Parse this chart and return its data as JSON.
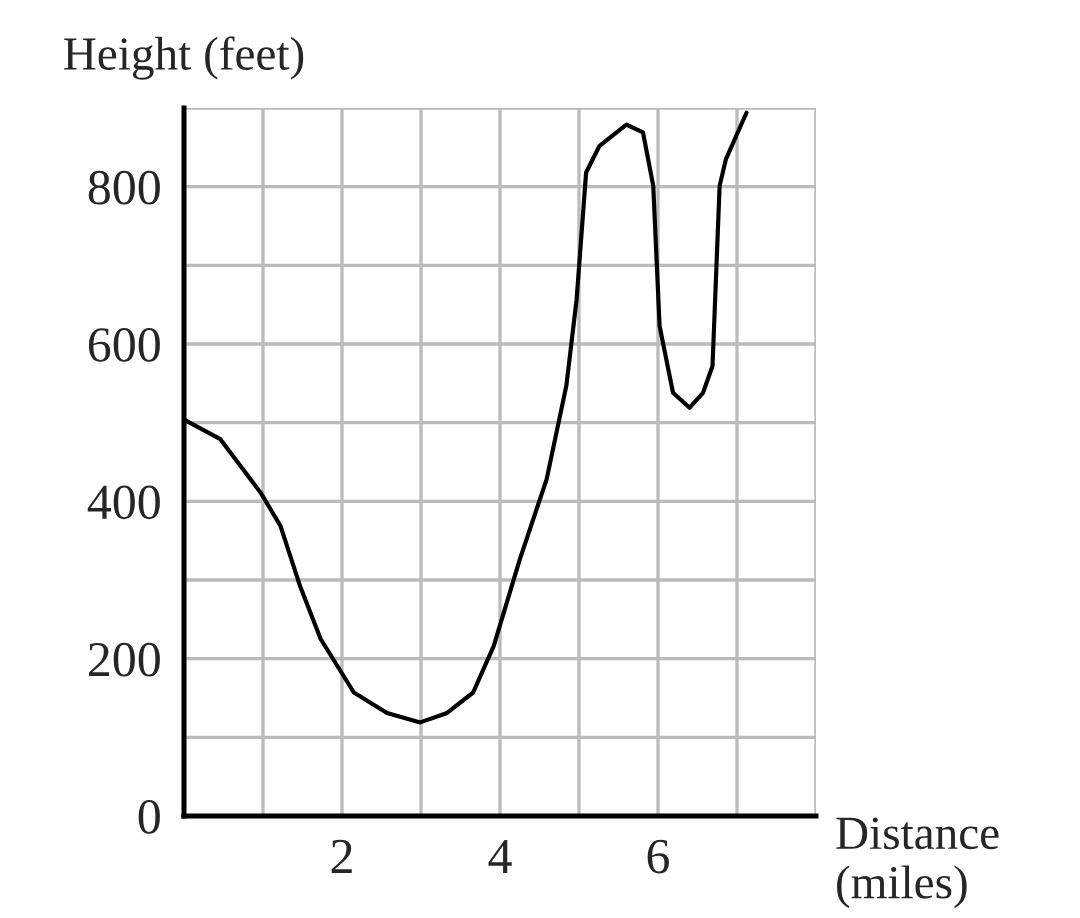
{
  "chart_data": {
    "type": "line",
    "xlabel": "Distance\n(miles)",
    "ylabel": "Height (feet)",
    "series": [
      {
        "color": "#000000",
        "x": [
          0,
          0.46,
          0.97,
          1.22,
          1.47,
          1.73,
          2.15,
          2.57,
          2.99,
          3.33,
          3.66,
          3.92,
          4.25,
          4.59,
          4.84,
          4.97,
          5.09,
          5.26,
          5.6,
          5.81,
          5.94,
          6.02,
          6.19,
          6.4,
          6.57,
          6.69,
          6.78,
          6.86,
          7.12
        ],
        "values": [
          504,
          479,
          411,
          369,
          292,
          225,
          157,
          131,
          119,
          131,
          157,
          216,
          326,
          428,
          547,
          657,
          818,
          852,
          879,
          869,
          801,
          623,
          538,
          519,
          538,
          572,
          801,
          835,
          894
        ]
      }
    ],
    "xlim": [
      0,
      8
    ],
    "ylim": [
      0,
      900
    ],
    "xticks": [
      {
        "value": 1,
        "label": null
      },
      2,
      {
        "value": 3,
        "label": null
      },
      4,
      {
        "value": 5,
        "label": null
      },
      6,
      {
        "value": 7,
        "label": null
      },
      {
        "value": 8,
        "label": null
      }
    ],
    "yticks": [
      0,
      {
        "value": 100,
        "label": null
      },
      200,
      {
        "value": 300,
        "label": null
      },
      400,
      {
        "value": 500,
        "label": null
      },
      600,
      {
        "value": 700,
        "label": null
      },
      800,
      {
        "value": 900,
        "label": null
      }
    ],
    "grid": true,
    "marker": "none",
    "line_style": "solid",
    "legend": false
  }
}
